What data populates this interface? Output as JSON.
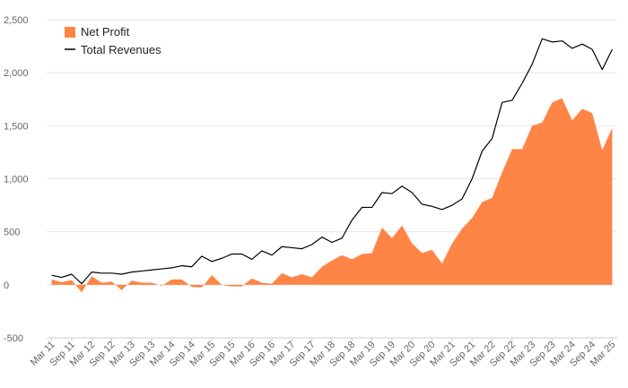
{
  "chart_data": {
    "type": "area",
    "title": "",
    "xlabel": "",
    "ylabel": "",
    "ylim": [
      -500,
      2500
    ],
    "yticks": [
      -500,
      0,
      500,
      1000,
      1500,
      2000,
      2500
    ],
    "ytick_labels": [
      "-500",
      "0",
      "500",
      "1,000",
      "1,500",
      "2,000",
      "2,500"
    ],
    "grid": true,
    "legend_placement": "top-left",
    "categories": [
      "Mar 11",
      "Jun 11",
      "Sep 11",
      "Dec 11",
      "Mar 12",
      "Jun 12",
      "Sep 12",
      "Dec 12",
      "Mar 13",
      "Jun 13",
      "Sep 13",
      "Dec 13",
      "Mar 14",
      "Jun 14",
      "Sep 14",
      "Dec 14",
      "Mar 15",
      "Jun 15",
      "Sep 15",
      "Dec 15",
      "Mar 16",
      "Jun 16",
      "Sep 16",
      "Dec 16",
      "Mar 17",
      "Jun 17",
      "Sep 17",
      "Dec 17",
      "Mar 18",
      "Jun 18",
      "Sep 18",
      "Dec 18",
      "Mar 19",
      "Jun 19",
      "Sep 19",
      "Dec 19",
      "Mar 20",
      "Jun 20",
      "Sep 20",
      "Dec 20",
      "Mar 21",
      "Jun 21",
      "Sep 21",
      "Dec 21",
      "Mar 22",
      "Jun 22",
      "Sep 22",
      "Dec 22",
      "Mar 23",
      "Jun 23",
      "Sep 23",
      "Dec 23",
      "Mar 24",
      "Jun 24",
      "Sep 24",
      "Dec 24",
      "Mar 25"
    ],
    "x_tick_labels": [
      "Mar 11",
      "Sep 11",
      "Mar 12",
      "Sep 12",
      "Mar 13",
      "Sep 13",
      "Mar 14",
      "Sep 14",
      "Mar 15",
      "Sep 15",
      "Mar 16",
      "Sep 16",
      "Mar 17",
      "Sep 17",
      "Mar 18",
      "Sep 18",
      "Mar 19",
      "Sep 19",
      "Mar 20",
      "Sep 20",
      "Mar 21",
      "Sep 21",
      "Mar 22",
      "Sep 22",
      "Mar 23",
      "Sep 23",
      "Mar 24",
      "Sep 24",
      "Mar 25"
    ],
    "series": [
      {
        "name": "Net Profit",
        "kind": "area",
        "color": "#ff8547",
        "values": [
          50,
          25,
          45,
          -70,
          80,
          20,
          30,
          -50,
          40,
          20,
          20,
          -10,
          50,
          50,
          -20,
          -25,
          90,
          0,
          -15,
          -15,
          60,
          20,
          10,
          110,
          70,
          100,
          70,
          170,
          230,
          280,
          240,
          290,
          300,
          540,
          440,
          560,
          390,
          300,
          330,
          200,
          390,
          530,
          630,
          780,
          820,
          1060,
          1280,
          1280,
          1500,
          1530,
          1720,
          1760,
          1550,
          1660,
          1620,
          1270,
          1480
        ]
      },
      {
        "name": "Total Revenues",
        "kind": "line",
        "color": "#000000",
        "values": [
          90,
          70,
          100,
          10,
          120,
          110,
          110,
          100,
          120,
          130,
          140,
          150,
          160,
          180,
          170,
          270,
          220,
          250,
          290,
          290,
          240,
          320,
          280,
          360,
          350,
          340,
          380,
          450,
          400,
          440,
          610,
          730,
          730,
          870,
          860,
          930,
          870,
          760,
          740,
          710,
          750,
          810,
          1000,
          1260,
          1380,
          1720,
          1740,
          1900,
          2080,
          2320,
          2290,
          2300,
          2230,
          2270,
          2220,
          2030,
          2220
        ]
      }
    ]
  }
}
